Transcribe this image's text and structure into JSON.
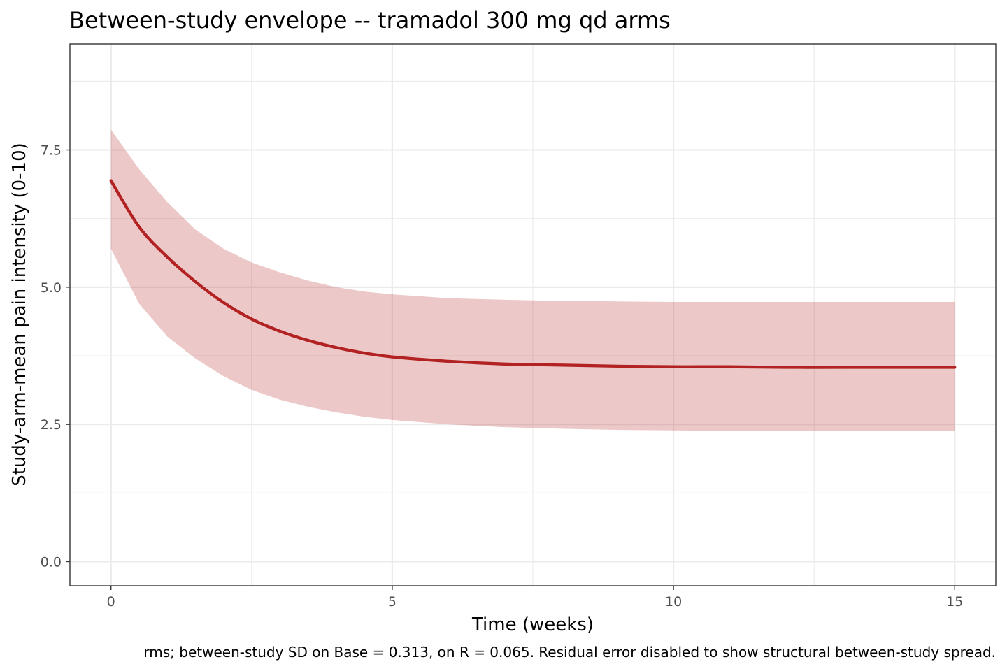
{
  "chart_data": {
    "type": "line",
    "title": "Between-study envelope -- tramadol 300 mg qd arms",
    "xlabel": "Time (weeks)",
    "ylabel": "Study-arm-mean pain intensity (0-10)",
    "caption": "rms; between-study SD on Base = 0.313, on R = 0.065. Residual error disabled to show structural between-study spread.",
    "xlim": [
      -0.73,
      15.73
    ],
    "ylim": [
      -0.44,
      9.43
    ],
    "x_ticks": [
      0,
      5,
      10,
      15
    ],
    "x_tick_labels": [
      "0",
      "5",
      "10",
      "15"
    ],
    "y_ticks": [
      0,
      2.5,
      5,
      7.5
    ],
    "y_tick_labels": [
      "0.0",
      "2.5",
      "5.0",
      "7.5"
    ],
    "grid": true,
    "colors": {
      "line": "#b22222",
      "band": "#b22222",
      "band_opacity": 0.25
    },
    "series": [
      {
        "x": [
          0,
          0.5,
          1,
          1.5,
          2,
          2.5,
          3,
          3.5,
          4,
          4.5,
          5,
          6,
          7,
          8,
          9,
          10,
          11,
          12,
          13,
          14,
          15
        ],
        "median": [
          6.94,
          6.1,
          5.55,
          5.1,
          4.72,
          4.42,
          4.2,
          4.03,
          3.9,
          3.8,
          3.73,
          3.65,
          3.6,
          3.58,
          3.56,
          3.55,
          3.55,
          3.54,
          3.54,
          3.54,
          3.54
        ],
        "lower": [
          5.7,
          4.7,
          4.1,
          3.7,
          3.38,
          3.13,
          2.95,
          2.82,
          2.72,
          2.64,
          2.58,
          2.5,
          2.45,
          2.42,
          2.4,
          2.39,
          2.38,
          2.38,
          2.38,
          2.38,
          2.38
        ],
        "upper": [
          7.87,
          7.15,
          6.55,
          6.05,
          5.7,
          5.45,
          5.27,
          5.12,
          5.0,
          4.92,
          4.87,
          4.8,
          4.77,
          4.75,
          4.74,
          4.73,
          4.73,
          4.73,
          4.73,
          4.73,
          4.73
        ]
      }
    ]
  }
}
